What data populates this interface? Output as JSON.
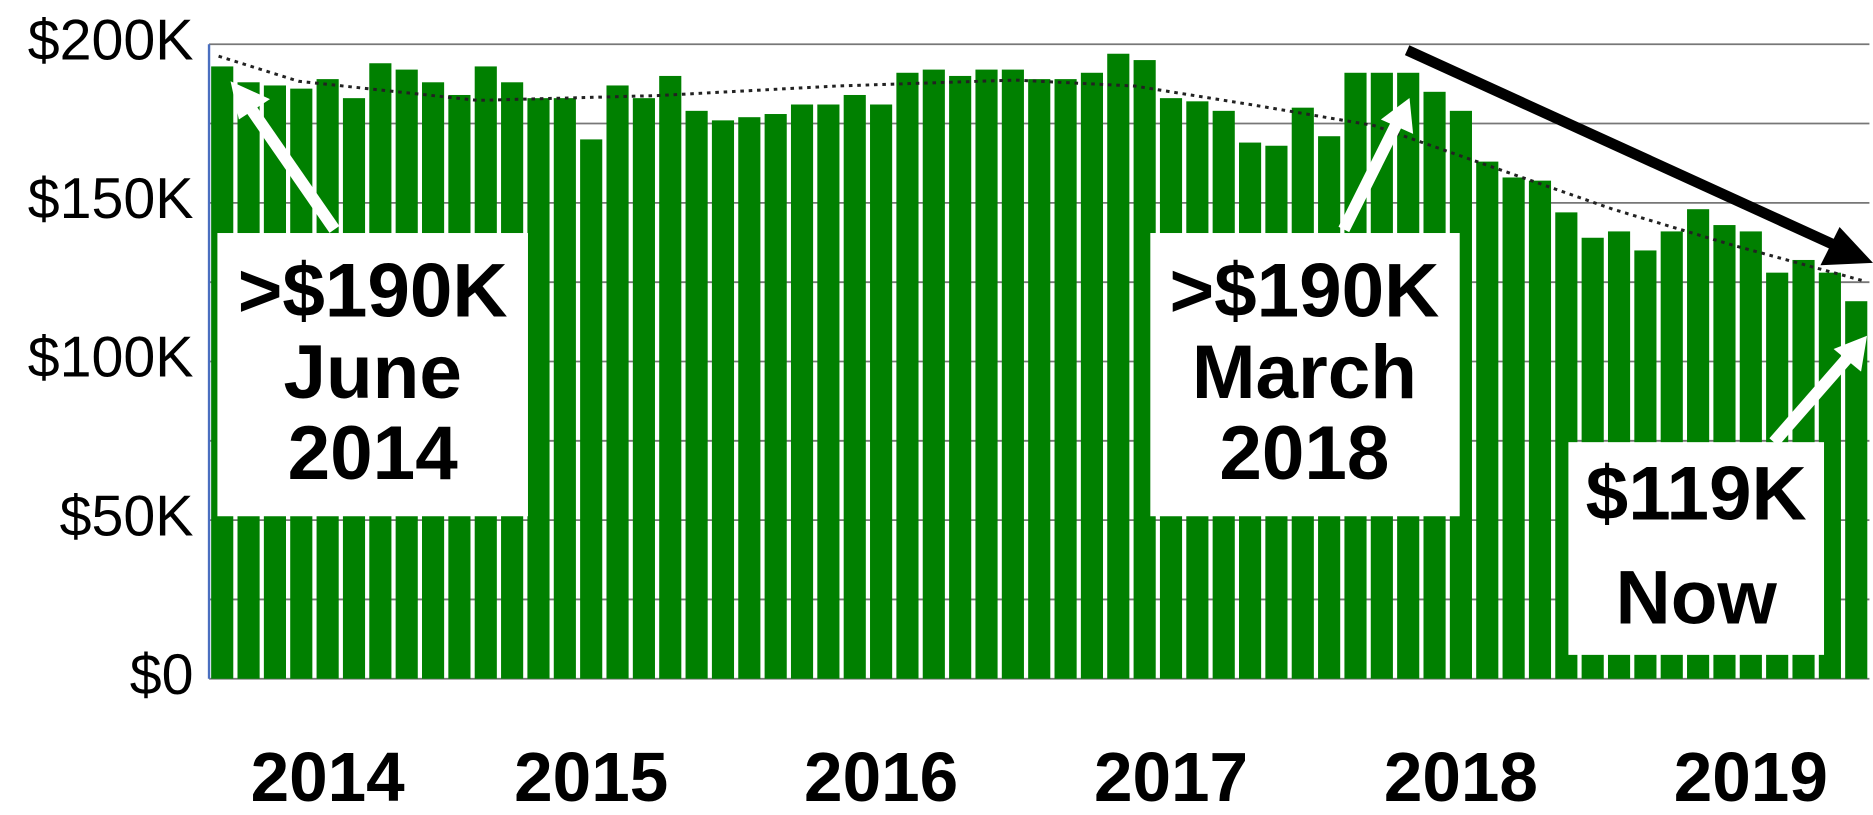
{
  "chart_data": {
    "type": "bar",
    "categories": [
      null,
      null,
      null,
      null,
      "2014",
      null,
      null,
      null,
      null,
      null,
      null,
      null,
      null,
      null,
      "2015",
      null,
      null,
      null,
      null,
      null,
      null,
      null,
      null,
      null,
      null,
      "2016",
      null,
      null,
      null,
      null,
      null,
      null,
      null,
      null,
      null,
      null,
      "2017",
      null,
      null,
      null,
      null,
      null,
      null,
      null,
      null,
      null,
      null,
      "2018",
      null,
      null,
      null,
      null,
      null,
      null,
      null,
      null,
      null,
      null,
      "2019",
      null,
      null,
      null,
      null
    ],
    "values": [
      193000,
      188000,
      187000,
      186000,
      189000,
      183000,
      194000,
      192000,
      188000,
      184000,
      193000,
      188000,
      183000,
      183000,
      170000,
      187000,
      183000,
      190000,
      179000,
      176000,
      177000,
      178000,
      181000,
      181000,
      184000,
      181000,
      191000,
      192000,
      190000,
      192000,
      192000,
      189000,
      189000,
      191000,
      197000,
      195000,
      183000,
      182000,
      179000,
      169000,
      168000,
      180000,
      171000,
      191000,
      191000,
      191000,
      185000,
      179000,
      163000,
      158000,
      157000,
      147000,
      139000,
      141000,
      135000,
      141000,
      148000,
      143000,
      141000,
      128000,
      132000,
      128000,
      119000
    ],
    "color": "#008000",
    "ylim": [
      0,
      200000
    ],
    "yticks": [
      {
        "value": 0,
        "label": "$0"
      },
      {
        "value": 50000,
        "label": "$50K"
      },
      {
        "value": 100000,
        "label": "$100K"
      },
      {
        "value": 150000,
        "label": "$150K"
      },
      {
        "value": 200000,
        "label": "$200K"
      }
    ],
    "minor_yticks": [
      25000,
      75000,
      125000,
      175000
    ],
    "grid": true,
    "annotations": [
      {
        "lines": [
          ">$190K",
          "June",
          "2014"
        ]
      },
      {
        "lines": [
          ">$190K",
          "March",
          "2018"
        ]
      },
      {
        "lines": [
          "$119K",
          "Now"
        ]
      }
    ]
  }
}
